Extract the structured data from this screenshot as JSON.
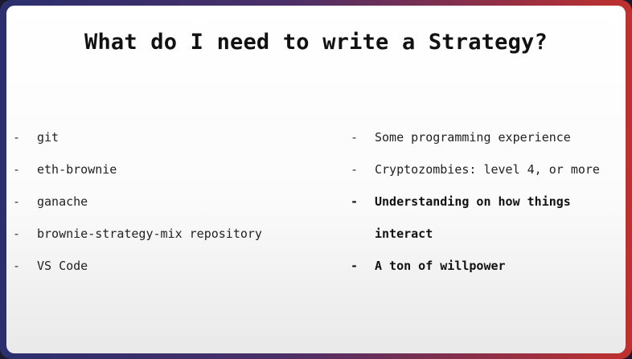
{
  "slide": {
    "title": "What do I need to write a Strategy?",
    "left_items": [
      {
        "marker": "-",
        "text": "git"
      },
      {
        "marker": "-",
        "text": "eth-brownie"
      },
      {
        "marker": "-",
        "text": "ganache"
      },
      {
        "marker": "-",
        "text": "brownie-strategy-mix repository"
      },
      {
        "marker": "-",
        "text": "VS Code"
      }
    ],
    "right_items": [
      {
        "marker": "-",
        "text": "Some programming experience"
      },
      {
        "marker": "-",
        "text": "Cryptozombies: level 4, or more"
      },
      {
        "marker": "-",
        "text": "Understanding on how things interact"
      },
      {
        "marker": "-",
        "text": "A ton of willpower"
      }
    ]
  }
}
